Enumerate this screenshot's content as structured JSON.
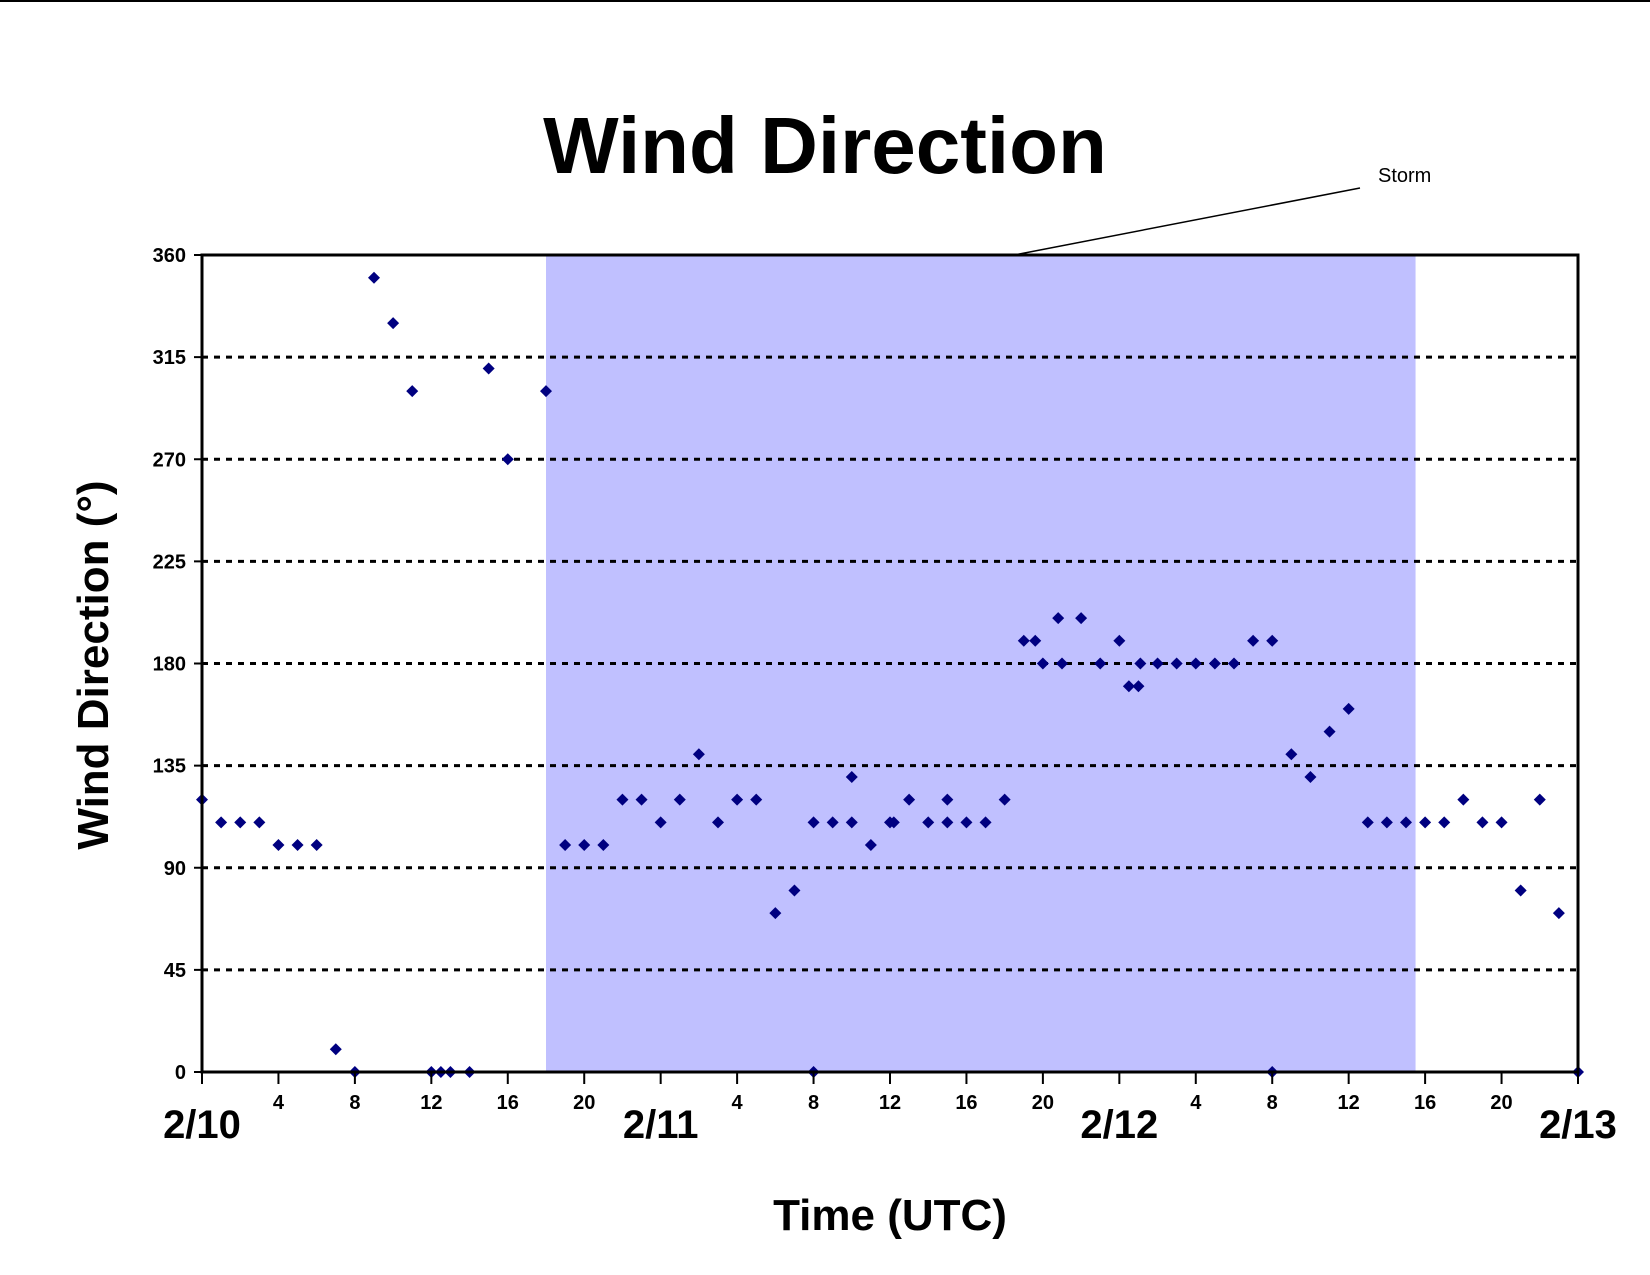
{
  "chart_data": {
    "type": "scatter",
    "title": "Wind Direction",
    "xlabel": "Time (UTC)",
    "ylabel": "Wind Direction (°)",
    "ylim": [
      0,
      360
    ],
    "yticks": [
      0,
      45,
      90,
      135,
      180,
      225,
      270,
      315,
      360
    ],
    "xlim_hours": [
      0,
      72
    ],
    "grid": "horizontal dotted",
    "marker_color": "#000080",
    "shade_color": "#c0c0ff",
    "day_labels": [
      {
        "hour": 0,
        "label": "2/10"
      },
      {
        "hour": 24,
        "label": "2/11"
      },
      {
        "hour": 48,
        "label": "2/12"
      },
      {
        "hour": 72,
        "label": "2/13"
      }
    ],
    "hour_tick_labels": [
      {
        "hour": 4,
        "label": "4"
      },
      {
        "hour": 8,
        "label": "8"
      },
      {
        "hour": 12,
        "label": "12"
      },
      {
        "hour": 16,
        "label": "16"
      },
      {
        "hour": 20,
        "label": "20"
      },
      {
        "hour": 28,
        "label": "4"
      },
      {
        "hour": 32,
        "label": "8"
      },
      {
        "hour": 36,
        "label": "12"
      },
      {
        "hour": 40,
        "label": "16"
      },
      {
        "hour": 44,
        "label": "20"
      },
      {
        "hour": 52,
        "label": "4"
      },
      {
        "hour": 56,
        "label": "8"
      },
      {
        "hour": 60,
        "label": "12"
      },
      {
        "hour": 64,
        "label": "16"
      },
      {
        "hour": 68,
        "label": "20"
      }
    ],
    "annotation": {
      "text": "Storm",
      "hour": 42.5,
      "value": 360
    },
    "shaded_region_hours": [
      18,
      63.5
    ],
    "series": [
      {
        "points": [
          [
            0,
            120
          ],
          [
            1,
            110
          ],
          [
            2,
            110
          ],
          [
            3,
            110
          ],
          [
            4,
            100
          ],
          [
            5,
            100
          ],
          [
            6,
            100
          ],
          [
            7,
            10
          ],
          [
            8,
            0
          ],
          [
            9,
            350
          ],
          [
            10,
            330
          ],
          [
            11,
            300
          ],
          [
            12,
            0
          ],
          [
            12.5,
            0
          ],
          [
            13,
            0
          ],
          [
            14,
            0
          ],
          [
            15,
            310
          ],
          [
            16,
            270
          ],
          [
            18,
            300
          ],
          [
            19,
            100
          ],
          [
            20,
            100
          ],
          [
            21,
            100
          ],
          [
            22,
            120
          ],
          [
            23,
            120
          ],
          [
            24,
            110
          ],
          [
            25,
            120
          ],
          [
            26,
            140
          ],
          [
            27,
            110
          ],
          [
            28,
            120
          ],
          [
            29,
            120
          ],
          [
            30,
            70
          ],
          [
            31,
            80
          ],
          [
            32,
            110
          ],
          [
            32,
            0
          ],
          [
            33,
            110
          ],
          [
            34,
            130
          ],
          [
            34,
            110
          ],
          [
            35,
            100
          ],
          [
            36,
            110
          ],
          [
            36.2,
            110
          ],
          [
            37,
            120
          ],
          [
            38,
            110
          ],
          [
            39,
            120
          ],
          [
            39,
            110
          ],
          [
            40,
            110
          ],
          [
            41,
            110
          ],
          [
            42,
            120
          ],
          [
            43,
            190
          ],
          [
            43.6,
            190
          ],
          [
            44,
            180
          ],
          [
            44.8,
            200
          ],
          [
            45,
            180
          ],
          [
            46,
            200
          ],
          [
            47,
            180
          ],
          [
            48,
            190
          ],
          [
            48.5,
            170
          ],
          [
            49,
            170
          ],
          [
            49.1,
            180
          ],
          [
            50,
            180
          ],
          [
            51,
            180
          ],
          [
            52,
            180
          ],
          [
            53,
            180
          ],
          [
            54,
            180
          ],
          [
            55,
            190
          ],
          [
            56,
            190
          ],
          [
            56,
            0
          ],
          [
            57,
            140
          ],
          [
            58,
            130
          ],
          [
            59,
            150
          ],
          [
            60,
            160
          ],
          [
            61,
            110
          ],
          [
            62,
            110
          ],
          [
            63,
            110
          ],
          [
            64,
            110
          ],
          [
            65,
            110
          ],
          [
            66,
            120
          ],
          [
            67,
            110
          ],
          [
            68,
            110
          ],
          [
            69,
            80
          ],
          [
            70,
            120
          ],
          [
            71,
            70
          ],
          [
            72,
            0
          ]
        ]
      }
    ]
  }
}
